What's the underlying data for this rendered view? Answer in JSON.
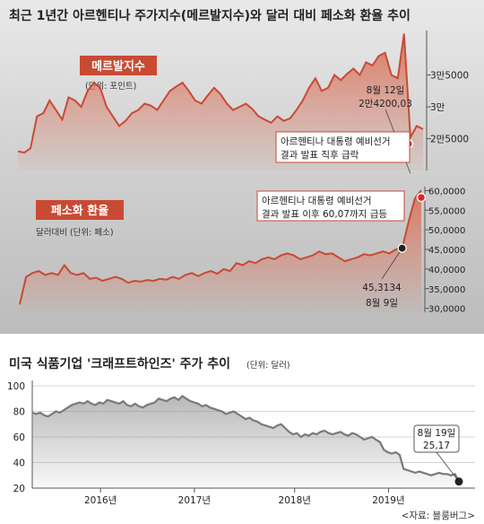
{
  "page": {
    "title_top": "최근 1년간 아르헨티나 주가지수(메르발지수)와 달러 대비 페소화 환율 추이",
    "source": "<자료: 블룸버그>"
  },
  "colors": {
    "accent_red": "#c94a33",
    "fill_red": "#d9735c",
    "dot_red": "#e0232b",
    "line_gray": "#7a7a7a",
    "dot_black": "#222222"
  },
  "chart_data": [
    {
      "type": "area",
      "label_box": "메르발지수",
      "unit": "(단위: 포인트)",
      "y_ticks": [
        {
          "value": 35000,
          "label": "3만5000"
        },
        {
          "value": 30000,
          "label": "3만"
        },
        {
          "value": 25000,
          "label": "2만5000"
        }
      ],
      "ylim": [
        20000,
        42000
      ],
      "values": [
        23000,
        22800,
        23500,
        28500,
        29000,
        31000,
        29500,
        28000,
        31500,
        31000,
        30000,
        32500,
        33800,
        33000,
        30000,
        28500,
        27000,
        27800,
        29000,
        29500,
        30500,
        30200,
        29500,
        31000,
        32500,
        33200,
        33800,
        32500,
        31000,
        30500,
        31800,
        33000,
        32000,
        30500,
        29500,
        30000,
        30500,
        29700,
        28500,
        28000,
        27500,
        28500,
        27800,
        28200,
        29500,
        31000,
        33000,
        34500,
        32500,
        33000,
        35000,
        34200,
        35200,
        36000,
        35000,
        37000,
        36500,
        38000,
        38500,
        35000,
        34500,
        41500,
        25200,
        27000,
        26500
      ],
      "annotation_high": {
        "date": "8월 12일",
        "value": "2만4200,03"
      },
      "annotation_event": [
        "아르헨티나 대통령 예비선거",
        "결과 발표 직후 급락"
      ]
    },
    {
      "type": "area",
      "label_box": "페소화 환율",
      "unit": "달러대비 (단위: 페소)",
      "y_ticks": [
        {
          "value": 60,
          "label": "60,0000"
        },
        {
          "value": 55,
          "label": "55,0000"
        },
        {
          "value": 50,
          "label": "50,0000"
        },
        {
          "value": 45,
          "label": "45,0000"
        },
        {
          "value": 40,
          "label": "40,0000"
        },
        {
          "value": 35,
          "label": "35,0000"
        },
        {
          "value": 30,
          "label": "30,0000"
        }
      ],
      "ylim": [
        29,
        61
      ],
      "values": [
        31,
        38,
        39,
        39.5,
        38.5,
        39,
        38.5,
        41,
        39,
        38.5,
        39,
        37.5,
        37.8,
        37,
        37.5,
        38,
        37.5,
        36.5,
        37,
        36.8,
        37.2,
        37,
        37.5,
        37.3,
        38,
        37.5,
        38.5,
        39,
        38.2,
        39,
        39.5,
        38.8,
        40,
        39.5,
        41.5,
        41,
        42,
        41.5,
        42.5,
        43,
        42.5,
        43.5,
        44,
        43.5,
        42.5,
        43,
        43.5,
        44.5,
        43.8,
        44,
        43,
        42,
        42.5,
        43,
        43.8,
        43.5,
        44,
        44.5,
        44,
        45,
        45.3134,
        52,
        58,
        60.07
      ],
      "annotation_start": {
        "value": "45,3134",
        "date": "8월 9일"
      },
      "annotation_event": [
        "아르헨티나 대통령 예비선거",
        "결과 발표 이후 60,07까지 급등"
      ]
    },
    {
      "type": "line",
      "title": "미국 식품기업 '크래프트하인즈' 주가 추이",
      "unit": "(단위: 달러)",
      "y_ticks": [
        100,
        80,
        60,
        40,
        20
      ],
      "ylim": [
        20,
        100
      ],
      "x_ticks": [
        {
          "label": "2016년",
          "pos": 0.16
        },
        {
          "label": "2017년",
          "pos": 0.38
        },
        {
          "label": "2018년",
          "pos": 0.615
        },
        {
          "label": "2019년",
          "pos": 0.835
        }
      ],
      "values": [
        79,
        78,
        79,
        77,
        76,
        78,
        80,
        79,
        81,
        83,
        85,
        86,
        87,
        86,
        88,
        86,
        85,
        87,
        86,
        89,
        88,
        87,
        86,
        88,
        85,
        84,
        86,
        84,
        83,
        85,
        86,
        87,
        90,
        89,
        88,
        90,
        91,
        89,
        92,
        90,
        88,
        87,
        86,
        84,
        85,
        83,
        82,
        81,
        80,
        78,
        79,
        80,
        78,
        76,
        74,
        75,
        73,
        72,
        70,
        69,
        68,
        67,
        69,
        70,
        67,
        64,
        62,
        63,
        60,
        62,
        61,
        63,
        62,
        64,
        65,
        63,
        62,
        63,
        64,
        62,
        61,
        63,
        62,
        60,
        58,
        59,
        60,
        58,
        56,
        50,
        48,
        47,
        48,
        46,
        35,
        34,
        33,
        32,
        33,
        32,
        31,
        30,
        31,
        32,
        31,
        31,
        30,
        31,
        25.17
      ],
      "annotation_end": {
        "date": "8월 19일",
        "value": "25,17"
      }
    }
  ]
}
